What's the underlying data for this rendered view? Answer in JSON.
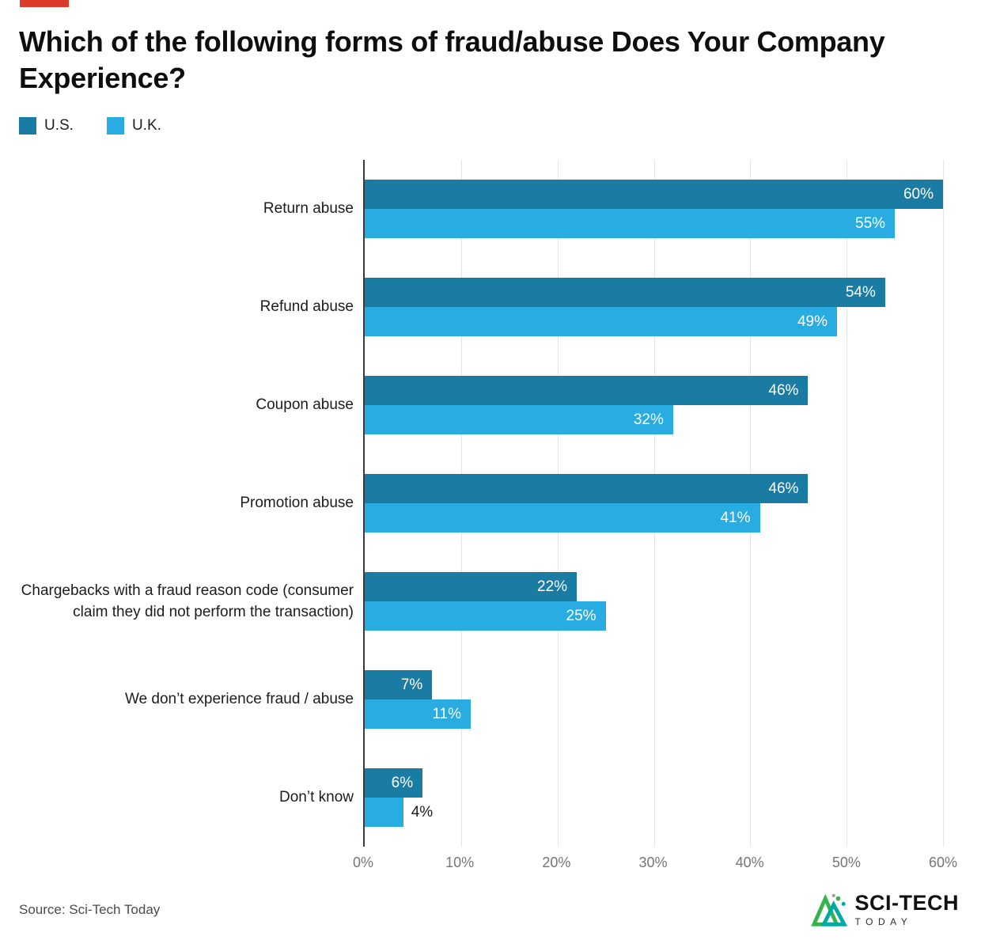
{
  "page": {
    "source": "Source: Sci-Tech Today",
    "brand": {
      "top": "SCI-TECH",
      "bottom": "TODAY"
    }
  },
  "chart_data": {
    "type": "bar",
    "orientation": "horizontal",
    "title": "Which of the following forms of fraud/abuse Does Your Company Experience?",
    "categories": [
      "Return abuse",
      "Refund abuse",
      "Coupon abuse",
      "Promotion abuse",
      "Chargebacks with a fraud reason code (consumer claim they did not perform the transaction)",
      "We don’t experience fraud / abuse",
      "Don’t know"
    ],
    "series": [
      {
        "name": "U.S.",
        "color": "#1A7BA3",
        "values": [
          60,
          54,
          46,
          46,
          22,
          7,
          6
        ]
      },
      {
        "name": "U.K.",
        "color": "#29ACE2",
        "values": [
          55,
          49,
          32,
          41,
          25,
          11,
          4
        ]
      }
    ],
    "xlim": [
      0,
      60
    ],
    "xticks": [
      0,
      10,
      20,
      30,
      40,
      50,
      60
    ],
    "xtick_suffix": "%",
    "value_label_suffix": "%",
    "label_outside_below": 5,
    "grid": true,
    "legend_position": "top-left"
  }
}
